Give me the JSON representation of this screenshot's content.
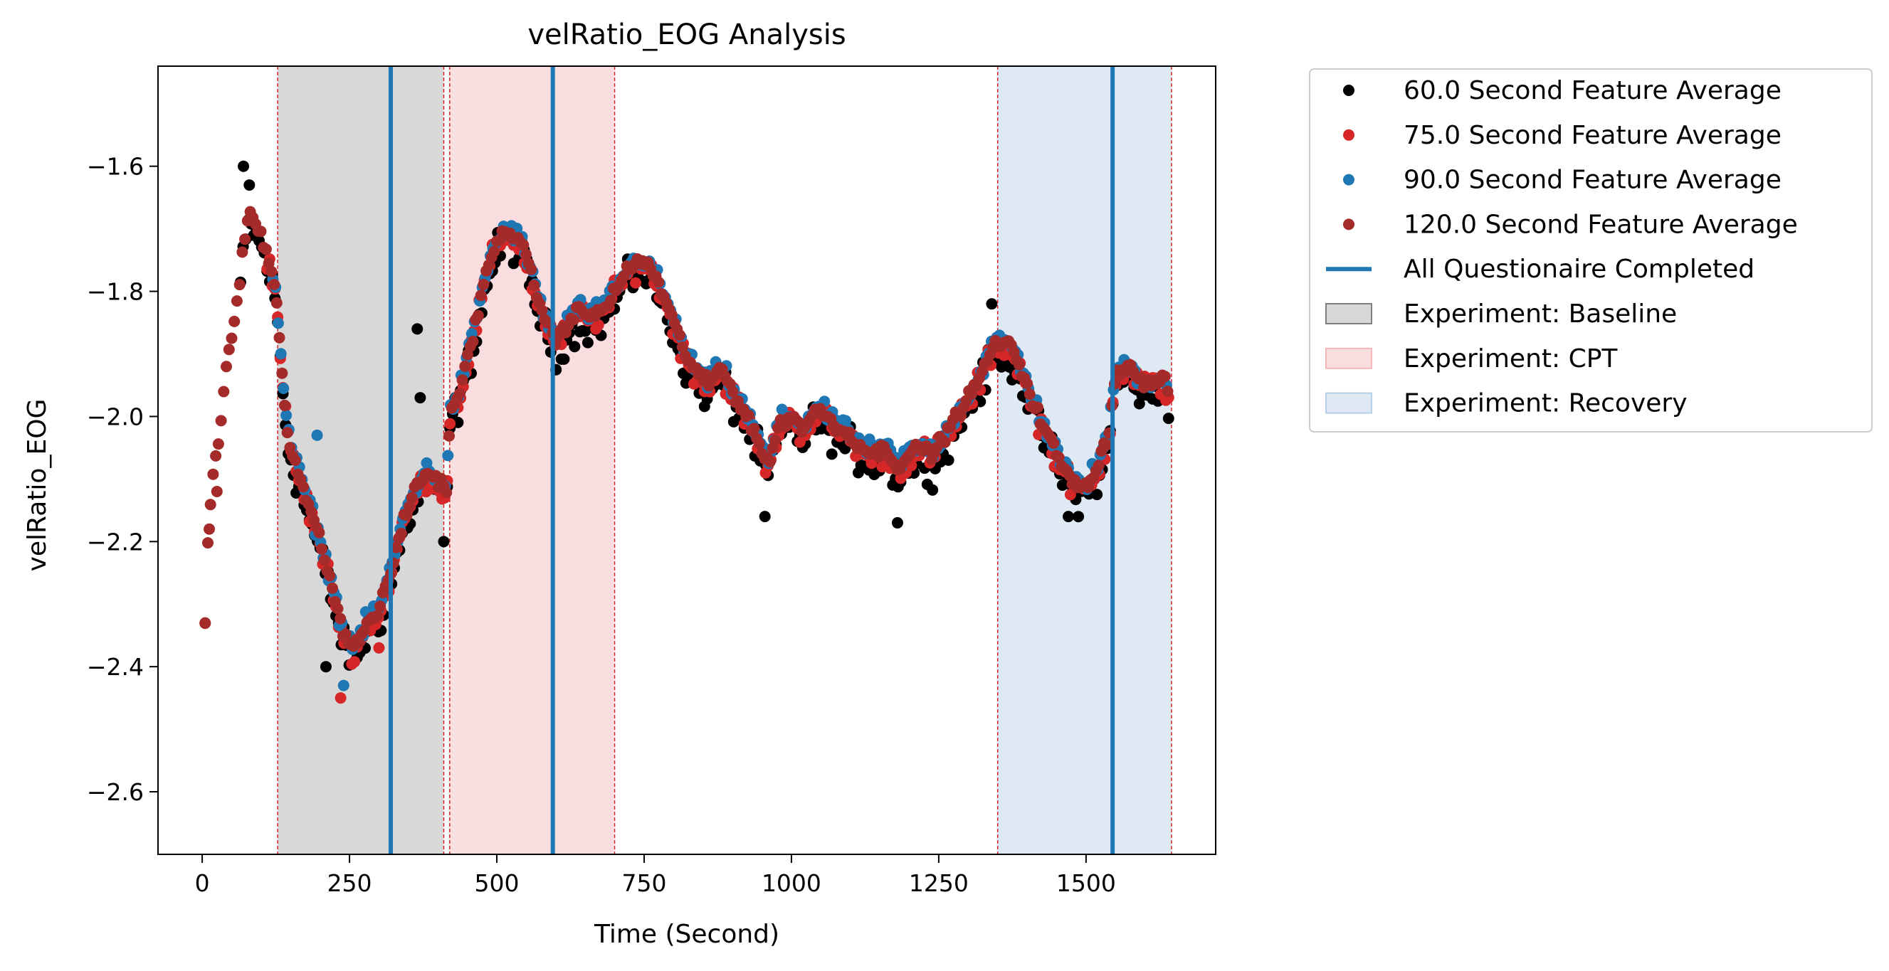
{
  "chart_data": {
    "type": "scatter",
    "title": "velRatio_EOG Analysis",
    "xlabel": "Time (Second)",
    "ylabel": "velRatio_EOG",
    "xlim": [
      -75,
      1720
    ],
    "ylim": [
      -2.7,
      -1.44
    ],
    "xticks": [
      0,
      250,
      500,
      750,
      1000,
      1250,
      1500
    ],
    "yticks": [
      -2.6,
      -2.4,
      -2.2,
      -2.0,
      -1.8,
      -1.6
    ],
    "ytick_labels": [
      "−2.6",
      "−2.4",
      "−2.2",
      "−2.0",
      "−1.8",
      "−1.6"
    ],
    "grid": false,
    "legend_position": "outside-right-top",
    "series": [
      {
        "name": "60.0 Second Feature Average",
        "color": "#000000",
        "offset": -0.018,
        "noise": 0.035
      },
      {
        "name": "75.0 Second Feature Average",
        "color": "#d62728",
        "offset": -0.006,
        "noise": 0.025
      },
      {
        "name": "90.0 Second Feature Average",
        "color": "#1f77b4",
        "offset": 0.004,
        "noise": 0.018
      },
      {
        "name": "120.0 Second Feature Average",
        "color": "#a52a2a",
        "offset": 0.0,
        "noise": 0.012
      }
    ],
    "trend": [
      [
        5,
        -2.33
      ],
      [
        10,
        -2.19
      ],
      [
        20,
        -2.08
      ],
      [
        30,
        -2.02
      ],
      [
        40,
        -1.93
      ],
      [
        55,
        -1.85
      ],
      [
        70,
        -1.73
      ],
      [
        80,
        -1.67
      ],
      [
        90,
        -1.69
      ],
      [
        100,
        -1.71
      ],
      [
        110,
        -1.74
      ],
      [
        125,
        -1.8
      ],
      [
        135,
        -1.92
      ],
      [
        145,
        -2.03
      ],
      [
        160,
        -2.08
      ],
      [
        180,
        -2.14
      ],
      [
        200,
        -2.2
      ],
      [
        220,
        -2.27
      ],
      [
        240,
        -2.35
      ],
      [
        260,
        -2.37
      ],
      [
        280,
        -2.33
      ],
      [
        300,
        -2.31
      ],
      [
        320,
        -2.25
      ],
      [
        340,
        -2.17
      ],
      [
        360,
        -2.12
      ],
      [
        380,
        -2.09
      ],
      [
        400,
        -2.1
      ],
      [
        415,
        -2.12
      ],
      [
        420,
        -2.0
      ],
      [
        440,
        -1.95
      ],
      [
        460,
        -1.87
      ],
      [
        480,
        -1.78
      ],
      [
        500,
        -1.72
      ],
      [
        520,
        -1.7
      ],
      [
        540,
        -1.72
      ],
      [
        560,
        -1.78
      ],
      [
        580,
        -1.84
      ],
      [
        600,
        -1.88
      ],
      [
        620,
        -1.85
      ],
      [
        640,
        -1.83
      ],
      [
        660,
        -1.84
      ],
      [
        680,
        -1.83
      ],
      [
        700,
        -1.8
      ],
      [
        720,
        -1.77
      ],
      [
        740,
        -1.75
      ],
      [
        760,
        -1.76
      ],
      [
        780,
        -1.8
      ],
      [
        800,
        -1.85
      ],
      [
        820,
        -1.9
      ],
      [
        840,
        -1.93
      ],
      [
        860,
        -1.95
      ],
      [
        880,
        -1.92
      ],
      [
        900,
        -1.96
      ],
      [
        920,
        -1.99
      ],
      [
        940,
        -2.03
      ],
      [
        960,
        -2.08
      ],
      [
        980,
        -2.01
      ],
      [
        1000,
        -2.0
      ],
      [
        1020,
        -2.02
      ],
      [
        1040,
        -1.99
      ],
      [
        1060,
        -2.0
      ],
      [
        1080,
        -2.02
      ],
      [
        1100,
        -2.03
      ],
      [
        1120,
        -2.05
      ],
      [
        1140,
        -2.06
      ],
      [
        1160,
        -2.05
      ],
      [
        1180,
        -2.08
      ],
      [
        1200,
        -2.06
      ],
      [
        1220,
        -2.05
      ],
      [
        1240,
        -2.06
      ],
      [
        1260,
        -2.03
      ],
      [
        1280,
        -2.0
      ],
      [
        1300,
        -1.97
      ],
      [
        1320,
        -1.94
      ],
      [
        1340,
        -1.89
      ],
      [
        1360,
        -1.88
      ],
      [
        1380,
        -1.9
      ],
      [
        1400,
        -1.95
      ],
      [
        1420,
        -2.0
      ],
      [
        1440,
        -2.04
      ],
      [
        1460,
        -2.08
      ],
      [
        1480,
        -2.11
      ],
      [
        1500,
        -2.11
      ],
      [
        1520,
        -2.08
      ],
      [
        1540,
        -2.02
      ],
      [
        1550,
        -1.93
      ],
      [
        1570,
        -1.92
      ],
      [
        1590,
        -1.94
      ],
      [
        1610,
        -1.95
      ],
      [
        1630,
        -1.94
      ],
      [
        1640,
        -1.96
      ]
    ],
    "points": [
      {
        "series": 0,
        "x": 70,
        "y": -1.6
      },
      {
        "series": 0,
        "x": 80,
        "y": -1.63
      },
      {
        "series": 0,
        "x": 365,
        "y": -1.86
      },
      {
        "series": 0,
        "x": 370,
        "y": -1.97
      },
      {
        "series": 0,
        "x": 410,
        "y": -2.2
      },
      {
        "series": 0,
        "x": 1180,
        "y": -2.17
      },
      {
        "series": 0,
        "x": 1340,
        "y": -1.82
      },
      {
        "series": 0,
        "x": 1470,
        "y": -2.16
      },
      {
        "series": 0,
        "x": 210,
        "y": -2.4
      },
      {
        "series": 0,
        "x": 955,
        "y": -2.16
      },
      {
        "series": 1,
        "x": 235,
        "y": -2.45
      },
      {
        "series": 1,
        "x": 300,
        "y": -2.37
      },
      {
        "series": 2,
        "x": 240,
        "y": -2.43
      },
      {
        "series": 2,
        "x": 195,
        "y": -2.03
      },
      {
        "series": 3,
        "x": 5,
        "y": -2.33
      },
      {
        "series": 3,
        "x": 12,
        "y": -2.18
      },
      {
        "series": 3,
        "x": 25,
        "y": -2.12
      }
    ],
    "vertical_lines": [
      {
        "x": 320,
        "label": "All Questionaire Completed",
        "color": "#1f77b4"
      },
      {
        "x": 595,
        "color": "#1f77b4"
      },
      {
        "x": 1545,
        "color": "#1f77b4"
      }
    ],
    "spans": [
      {
        "x0": 128,
        "x1": 410,
        "label": "Experiment: Baseline",
        "color": "#7f7f7f"
      },
      {
        "x0": 420,
        "x1": 700,
        "label": "Experiment: CPT",
        "color": "#f4b6b9"
      },
      {
        "x0": 1350,
        "x1": 1645,
        "label": "Experiment: Recovery",
        "color": "#b5cfe6"
      }
    ],
    "boundary_lines": [
      128,
      410,
      420,
      700,
      1350,
      1645
    ]
  }
}
